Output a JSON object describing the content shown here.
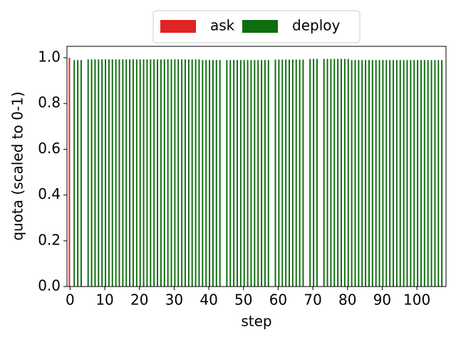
{
  "chart_data": {
    "type": "bar",
    "x_label": "step",
    "y_label": "quota (scaled to 0-1)",
    "x": [
      0,
      1,
      2,
      3,
      4,
      5,
      6,
      7,
      8,
      9,
      10,
      11,
      12,
      13,
      14,
      15,
      16,
      17,
      18,
      19,
      20,
      21,
      22,
      23,
      24,
      25,
      26,
      27,
      28,
      29,
      30,
      31,
      32,
      33,
      34,
      35,
      36,
      37,
      38,
      39,
      40,
      41,
      42,
      43,
      44,
      45,
      46,
      47,
      48,
      49,
      50,
      51,
      52,
      53,
      54,
      55,
      56,
      57,
      58,
      59,
      60,
      61,
      62,
      63,
      64,
      65,
      66,
      67,
      68,
      69,
      70,
      71,
      72,
      73,
      74,
      75,
      76,
      77,
      78,
      79,
      80,
      81,
      82,
      83,
      84,
      85,
      86,
      87,
      88,
      89,
      90,
      91,
      92,
      93,
      94,
      95,
      96,
      97,
      98,
      99,
      100,
      101,
      102,
      103,
      104,
      105,
      106,
      107
    ],
    "series": [
      {
        "name": "ask",
        "color": "#e02424",
        "values": [
          1.0,
          null,
          null,
          null,
          null,
          null,
          null,
          null,
          null,
          null,
          null,
          null,
          null,
          null,
          null,
          null,
          null,
          null,
          null,
          null,
          null,
          null,
          null,
          null,
          null,
          null,
          null,
          null,
          null,
          null,
          null,
          null,
          null,
          null,
          null,
          null,
          null,
          null,
          null,
          null,
          null,
          null,
          null,
          null,
          null,
          null,
          null,
          null,
          null,
          null,
          null,
          null,
          null,
          null,
          null,
          null,
          null,
          null,
          null,
          null,
          null,
          null,
          null,
          null,
          null,
          null,
          null,
          null,
          null,
          null,
          null,
          null,
          null,
          null,
          null,
          null,
          null,
          null,
          null,
          null,
          null,
          null,
          null,
          null,
          null,
          null,
          null,
          null,
          null,
          null,
          null,
          null,
          null,
          null,
          null,
          null,
          null,
          null,
          null,
          null,
          null,
          null,
          null,
          null,
          null,
          null,
          null,
          null
        ]
      },
      {
        "name": "deploy",
        "color": "#0e6e0e",
        "values": [
          null,
          0.99,
          0.99,
          0.99,
          null,
          0.993,
          0.993,
          0.993,
          0.993,
          0.993,
          0.993,
          0.993,
          0.993,
          0.993,
          0.993,
          0.993,
          0.993,
          0.993,
          0.993,
          0.993,
          0.993,
          0.993,
          0.993,
          0.993,
          0.993,
          0.993,
          0.993,
          0.993,
          0.993,
          0.993,
          0.993,
          0.993,
          0.993,
          0.993,
          0.993,
          0.993,
          0.993,
          0.993,
          0.99,
          0.99,
          0.99,
          0.99,
          0.99,
          0.99,
          null,
          0.99,
          0.99,
          0.99,
          0.99,
          0.99,
          0.99,
          0.99,
          0.99,
          0.99,
          0.99,
          0.99,
          0.99,
          0.99,
          null,
          0.992,
          0.992,
          0.992,
          0.992,
          0.992,
          0.992,
          0.992,
          0.992,
          0.992,
          null,
          0.995,
          0.995,
          0.995,
          null,
          0.995,
          0.995,
          0.995,
          0.995,
          0.995,
          0.995,
          0.995,
          0.995,
          0.99,
          0.99,
          0.99,
          0.99,
          0.99,
          0.99,
          0.99,
          0.99,
          0.99,
          0.99,
          0.99,
          0.99,
          0.99,
          0.99,
          0.99,
          0.99,
          0.99,
          0.99,
          0.99,
          0.99,
          0.99,
          0.99,
          0.99,
          0.99,
          0.99,
          0.99,
          0.99
        ]
      }
    ],
    "xlim": [
      -0.9,
      108.4
    ],
    "ylim": [
      0,
      1.05
    ],
    "xticks": [
      0,
      10,
      20,
      30,
      40,
      50,
      60,
      70,
      80,
      90,
      100
    ],
    "yticks": [
      {
        "value": 0,
        "label": "0.0"
      },
      {
        "value": 0.2,
        "label": "0.2"
      },
      {
        "value": 0.4,
        "label": "0.4"
      },
      {
        "value": 0.6,
        "label": "0.6"
      },
      {
        "value": 0.8,
        "label": "0.8"
      },
      {
        "value": 1,
        "label": "1.0"
      }
    ],
    "legend": "top-outside"
  }
}
